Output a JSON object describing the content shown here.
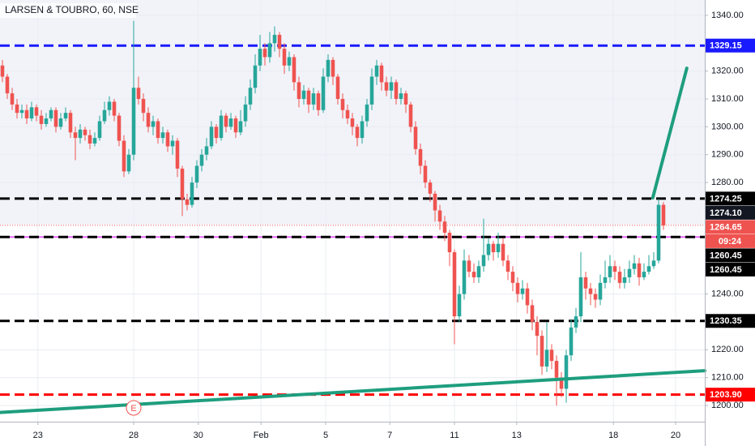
{
  "chart_data": {
    "type": "candlestick",
    "title": "LARSEN & TOUBRO, 60, NSE",
    "up_color": "#26a69a",
    "down_color": "#ef5350",
    "grid": true,
    "xlim": [
      -0.5,
      144.5
    ],
    "xticks": [
      {
        "value": 7.3,
        "label": "23"
      },
      {
        "value": 27,
        "label": "28"
      },
      {
        "value": 40.3,
        "label": "30"
      },
      {
        "value": 53.2,
        "label": "Feb"
      },
      {
        "value": 66.5,
        "label": "5"
      },
      {
        "value": 79.7,
        "label": "7"
      },
      {
        "value": 93,
        "label": "11"
      },
      {
        "value": 105.8,
        "label": "13"
      },
      {
        "value": 125.7,
        "label": "18"
      },
      {
        "value": 138.5,
        "label": "20"
      }
    ],
    "ylim": [
      1194.2,
      1345.5
    ],
    "yticks": [
      {
        "value": 1340,
        "label": "1340.00"
      },
      {
        "value": 1320,
        "label": "1320.00"
      },
      {
        "value": 1310,
        "label": "1310.00"
      },
      {
        "value": 1300,
        "label": "1300.00"
      },
      {
        "value": 1290,
        "label": "1290.00"
      },
      {
        "value": 1280,
        "label": "1280.00"
      },
      {
        "value": 1240,
        "label": "1240.00"
      },
      {
        "value": 1220,
        "label": "1220.00"
      },
      {
        "value": 1210,
        "label": "1210.00"
      },
      {
        "value": 1200,
        "label": "1200.00"
      }
    ],
    "open": [
      1322,
      1318,
      1312,
      1308,
      1305,
      1306,
      1303,
      1307,
      1304,
      1301,
      1303,
      1306,
      1300,
      1303,
      1305,
      1298,
      1296,
      1299,
      1297,
      1294,
      1296,
      1302,
      1306,
      1309,
      1304,
      1295,
      1284,
      1290,
      1314,
      1310,
      1305,
      1300,
      1302,
      1296,
      1298,
      1293,
      1295,
      1285,
      1274,
      1272,
      1280,
      1286,
      1290,
      1293,
      1300,
      1296,
      1304,
      1300,
      1303,
      1298,
      1302,
      1308,
      1314,
      1322,
      1328,
      1325,
      1330,
      1333,
      1328,
      1322,
      1325,
      1316,
      1310,
      1313,
      1308,
      1312,
      1306,
      1318,
      1324,
      1318,
      1310,
      1306,
      1303,
      1300,
      1296,
      1302,
      1308,
      1318,
      1322,
      1316,
      1313,
      1316,
      1310,
      1312,
      1308,
      1300,
      1292,
      1286,
      1280,
      1276,
      1270,
      1266,
      1262,
      1255,
      1232,
      1240,
      1252,
      1248,
      1246,
      1250,
      1254,
      1258,
      1255,
      1258,
      1252,
      1248,
      1244,
      1240,
      1242,
      1236,
      1230,
      1225,
      1214,
      1220,
      1216,
      1210,
      1206,
      1218,
      1228,
      1232,
      1246,
      1242,
      1240,
      1238,
      1244,
      1246,
      1250,
      1248,
      1244,
      1246,
      1249,
      1251,
      1246,
      1248,
      1250,
      1252,
      1272
    ],
    "high": [
      1324,
      1319,
      1314,
      1310,
      1308,
      1308,
      1309,
      1308,
      1306,
      1305,
      1307,
      1307,
      1305,
      1307,
      1306,
      1300,
      1301,
      1300,
      1299,
      1298,
      1304,
      1309,
      1311,
      1310,
      1305,
      1297,
      1292,
      1338,
      1318,
      1312,
      1307,
      1304,
      1303,
      1300,
      1299,
      1297,
      1296,
      1286,
      1276,
      1282,
      1288,
      1292,
      1296,
      1302,
      1301,
      1306,
      1305,
      1305,
      1304,
      1306,
      1311,
      1317,
      1326,
      1333,
      1330,
      1334,
      1336,
      1334,
      1330,
      1327,
      1326,
      1318,
      1315,
      1314,
      1314,
      1313,
      1321,
      1326,
      1325,
      1319,
      1312,
      1308,
      1305,
      1301,
      1304,
      1310,
      1321,
      1324,
      1323,
      1318,
      1318,
      1317,
      1314,
      1313,
      1309,
      1302,
      1294,
      1288,
      1281,
      1277,
      1272,
      1268,
      1263,
      1256,
      1243,
      1256,
      1254,
      1251,
      1252,
      1267,
      1260,
      1259,
      1262,
      1260,
      1254,
      1250,
      1246,
      1245,
      1244,
      1238,
      1232,
      1227,
      1230,
      1222,
      1218,
      1212,
      1220,
      1231,
      1235,
      1255,
      1248,
      1244,
      1242,
      1247,
      1252,
      1254,
      1252,
      1250,
      1249,
      1252,
      1254,
      1253,
      1251,
      1254,
      1255,
      1274.1,
      1273
    ],
    "low": [
      1316,
      1310,
      1306,
      1303,
      1303,
      1301,
      1302,
      1302,
      1299,
      1300,
      1302,
      1298,
      1299,
      1302,
      1296,
      1288,
      1294,
      1295,
      1292,
      1293,
      1295,
      1301,
      1304,
      1302,
      1293,
      1282,
      1283,
      1288,
      1308,
      1302,
      1298,
      1297,
      1294,
      1294,
      1291,
      1290,
      1282,
      1268,
      1270,
      1271,
      1278,
      1284,
      1288,
      1292,
      1294,
      1295,
      1298,
      1299,
      1296,
      1297,
      1300,
      1306,
      1312,
      1320,
      1322,
      1323,
      1327,
      1325,
      1319,
      1320,
      1313,
      1307,
      1308,
      1305,
      1306,
      1304,
      1305,
      1316,
      1315,
      1308,
      1303,
      1301,
      1297,
      1293,
      1294,
      1300,
      1306,
      1315,
      1313,
      1311,
      1310,
      1308,
      1308,
      1305,
      1298,
      1290,
      1283,
      1278,
      1273,
      1266,
      1263,
      1259,
      1250,
      1222,
      1230,
      1238,
      1246,
      1244,
      1244,
      1248,
      1252,
      1252,
      1253,
      1250,
      1245,
      1241,
      1237,
      1238,
      1233,
      1227,
      1218,
      1211,
      1212,
      1213,
      1200,
      1203,
      1201,
      1216,
      1226,
      1230,
      1238,
      1236,
      1235,
      1236,
      1242,
      1244,
      1245,
      1242,
      1242,
      1244,
      1247,
      1243,
      1245,
      1247,
      1249,
      1251,
      1263
    ],
    "close": [
      1318,
      1312,
      1308,
      1305,
      1306,
      1303,
      1307,
      1304,
      1301,
      1303,
      1306,
      1300,
      1303,
      1305,
      1298,
      1296,
      1299,
      1297,
      1294,
      1296,
      1302,
      1306,
      1309,
      1304,
      1295,
      1284,
      1290,
      1314,
      1310,
      1305,
      1300,
      1302,
      1296,
      1298,
      1293,
      1295,
      1285,
      1274,
      1272,
      1280,
      1286,
      1290,
      1293,
      1300,
      1296,
      1304,
      1300,
      1303,
      1298,
      1302,
      1308,
      1314,
      1322,
      1328,
      1325,
      1330,
      1333,
      1328,
      1322,
      1325,
      1316,
      1310,
      1313,
      1308,
      1312,
      1306,
      1318,
      1324,
      1318,
      1310,
      1306,
      1303,
      1300,
      1296,
      1302,
      1308,
      1318,
      1322,
      1316,
      1313,
      1316,
      1310,
      1312,
      1308,
      1300,
      1292,
      1286,
      1280,
      1276,
      1270,
      1266,
      1262,
      1255,
      1232,
      1240,
      1252,
      1248,
      1246,
      1250,
      1254,
      1258,
      1255,
      1258,
      1252,
      1248,
      1244,
      1240,
      1242,
      1236,
      1230,
      1225,
      1214,
      1220,
      1216,
      1210,
      1206,
      1218,
      1228,
      1232,
      1246,
      1242,
      1240,
      1238,
      1244,
      1246,
      1250,
      1248,
      1244,
      1246,
      1249,
      1251,
      1246,
      1248,
      1250,
      1252,
      1272,
      1264.65
    ],
    "levels": [
      {
        "value": 1329.15,
        "label": "1329.15",
        "color": "#1a1aff",
        "style": "dashed"
      },
      {
        "value": 1274.25,
        "label": "1274.25",
        "color": "#000000",
        "style": "dashed"
      },
      {
        "value": 1260.45,
        "label": "1260.45",
        "color": "#e040fb",
        "style": "solid"
      },
      {
        "value": 1260.45,
        "label": "1260.45",
        "color": "#000000",
        "style": "dashed"
      },
      {
        "value": 1230.35,
        "label": "1230.35",
        "color": "#000000",
        "style": "dashed"
      },
      {
        "value": 1203.9,
        "label": "1203.90",
        "color": "#ff0000",
        "style": "dashed"
      }
    ],
    "price_labels": [
      {
        "value": 1274.1,
        "label": "1274.10",
        "color": "#131722"
      },
      {
        "value": 1264.65,
        "label": "1264.65",
        "color": "#ef5350"
      }
    ],
    "countdown": "09:24",
    "trendlines": [
      {
        "points": [
          [
            -0.5,
            1197.5
          ],
          [
            144.5,
            1212.5
          ]
        ],
        "color": "#1e9e7e"
      },
      {
        "points": [
          [
            133.8,
            1274.5
          ],
          [
            140.8,
            1321
          ]
        ],
        "color": "#1e9e7e"
      }
    ],
    "events": [
      {
        "x": 27,
        "label": "E"
      }
    ]
  }
}
